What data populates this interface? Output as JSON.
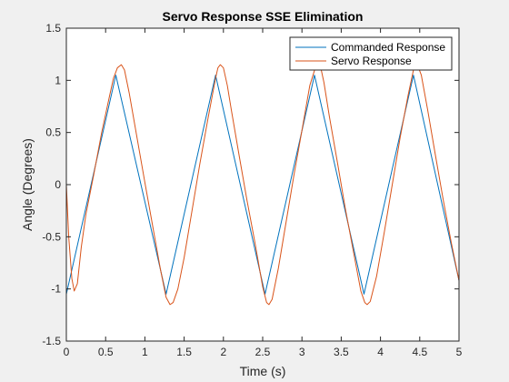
{
  "chart_data": {
    "type": "line",
    "title": "Servo Response SSE Elimination",
    "xlabel": "Time (s)",
    "ylabel": "Angle (Degrees)",
    "xlim": [
      0,
      5
    ],
    "ylim": [
      -1.5,
      1.5
    ],
    "xticks": [
      0,
      0.5,
      1,
      1.5,
      2,
      2.5,
      3,
      3.5,
      4,
      4.5,
      5
    ],
    "xtick_labels": [
      "0",
      "0.5",
      "1",
      "1.5",
      "2",
      "2.5",
      "3",
      "3.5",
      "4",
      "4.5",
      "5"
    ],
    "yticks": [
      -1.5,
      -1,
      -0.5,
      0,
      0.5,
      1,
      1.5
    ],
    "ytick_labels": [
      "-1.5",
      "-1",
      "-0.5",
      "0",
      "0.5",
      "1",
      "1.5"
    ],
    "grid": false,
    "legend_position": "top-right",
    "series": [
      {
        "name": "Commanded Response",
        "color": "#0072BD",
        "x": [
          0,
          0.63,
          1.27,
          1.9,
          2.53,
          3.16,
          3.79,
          4.42,
          5.0
        ],
        "y": [
          -1.05,
          1.05,
          -1.05,
          1.05,
          -1.05,
          1.05,
          -1.05,
          1.05,
          -0.92
        ]
      },
      {
        "name": "Servo Response",
        "color": "#D95319",
        "x": [
          0,
          0.03,
          0.07,
          0.1,
          0.14,
          0.19,
          0.25,
          0.35,
          0.45,
          0.55,
          0.6,
          0.65,
          0.7,
          0.74,
          0.8,
          0.9,
          1.0,
          1.1,
          1.2,
          1.27,
          1.32,
          1.36,
          1.42,
          1.5,
          1.6,
          1.7,
          1.8,
          1.9,
          1.93,
          1.96,
          2.0,
          2.05,
          2.1,
          2.2,
          2.3,
          2.4,
          2.5,
          2.55,
          2.58,
          2.62,
          2.7,
          2.8,
          2.9,
          3.0,
          3.1,
          3.17,
          3.2,
          3.24,
          3.28,
          3.35,
          3.45,
          3.55,
          3.65,
          3.75,
          3.8,
          3.83,
          3.87,
          3.95,
          4.05,
          4.15,
          4.25,
          4.35,
          4.42,
          4.45,
          4.48,
          4.52,
          4.6,
          4.7,
          4.8,
          4.9,
          5.0
        ],
        "y": [
          0,
          -0.5,
          -0.9,
          -1.02,
          -0.95,
          -0.6,
          -0.28,
          0.1,
          0.5,
          0.85,
          1.02,
          1.12,
          1.15,
          1.1,
          0.88,
          0.45,
          0.02,
          -0.4,
          -0.82,
          -1.08,
          -1.15,
          -1.13,
          -1.0,
          -0.7,
          -0.25,
          0.2,
          0.62,
          1.02,
          1.12,
          1.15,
          1.12,
          0.95,
          0.72,
          0.28,
          -0.15,
          -0.55,
          -0.98,
          -1.13,
          -1.15,
          -1.1,
          -0.8,
          -0.35,
          0.1,
          0.52,
          0.95,
          1.12,
          1.15,
          1.12,
          0.98,
          0.65,
          0.22,
          -0.22,
          -0.62,
          -1.02,
          -1.13,
          -1.15,
          -1.12,
          -0.88,
          -0.45,
          0.0,
          0.45,
          0.85,
          1.1,
          1.15,
          1.13,
          1.05,
          0.72,
          0.28,
          -0.15,
          -0.55,
          -0.92
        ]
      }
    ]
  }
}
